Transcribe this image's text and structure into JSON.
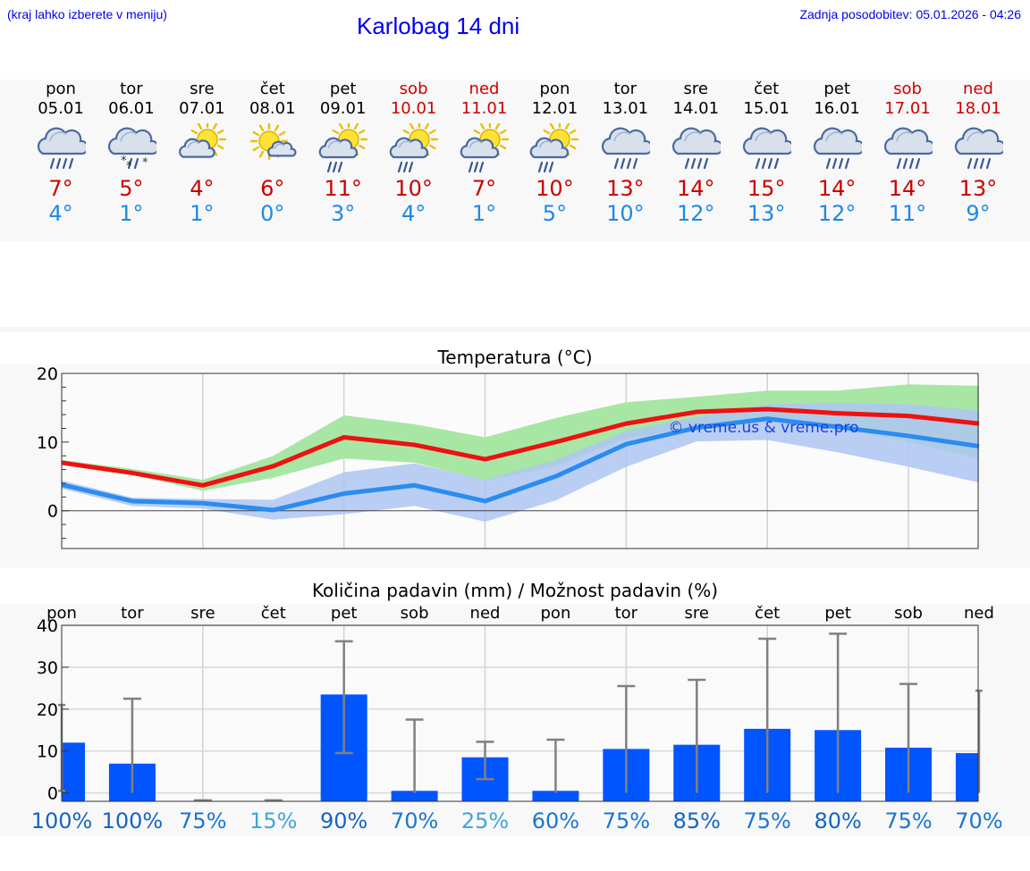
{
  "header": {
    "hint": "(kraj lahko izberete v meniju)",
    "title": "Karlobag 14 dni",
    "updated": "Zadnja posodobitev: 05.01.2026 - 04:26"
  },
  "days": [
    {
      "name": "pon",
      "date": "05.01",
      "icon": "cloud-rain-icon",
      "tmax": "7°",
      "tmin": "4°",
      "weekend": false
    },
    {
      "name": "tor",
      "date": "06.01",
      "icon": "cloud-rain-snow-icon",
      "tmax": "5°",
      "tmin": "1°",
      "weekend": false
    },
    {
      "name": "sre",
      "date": "07.01",
      "icon": "sun-cloud-icon",
      "tmax": "4°",
      "tmin": "1°",
      "weekend": false
    },
    {
      "name": "čet",
      "date": "08.01",
      "icon": "sun-small-cloud-icon",
      "tmax": "6°",
      "tmin": "0°",
      "weekend": false
    },
    {
      "name": "pet",
      "date": "09.01",
      "icon": "sun-cloud-rain-icon",
      "tmax": "11°",
      "tmin": "3°",
      "weekend": false
    },
    {
      "name": "sob",
      "date": "10.01",
      "icon": "sun-cloud-rain-icon",
      "tmax": "10°",
      "tmin": "4°",
      "weekend": true
    },
    {
      "name": "ned",
      "date": "11.01",
      "icon": "sun-cloud-rain-icon",
      "tmax": "7°",
      "tmin": "1°",
      "weekend": true
    },
    {
      "name": "pon",
      "date": "12.01",
      "icon": "sun-cloud-rain-icon",
      "tmax": "10°",
      "tmin": "5°",
      "weekend": false
    },
    {
      "name": "tor",
      "date": "13.01",
      "icon": "cloud-rain-icon",
      "tmax": "13°",
      "tmin": "10°",
      "weekend": false
    },
    {
      "name": "sre",
      "date": "14.01",
      "icon": "cloud-rain-icon",
      "tmax": "14°",
      "tmin": "12°",
      "weekend": false
    },
    {
      "name": "čet",
      "date": "15.01",
      "icon": "cloud-rain-icon",
      "tmax": "15°",
      "tmin": "13°",
      "weekend": false
    },
    {
      "name": "pet",
      "date": "16.01",
      "icon": "cloud-rain-icon",
      "tmax": "14°",
      "tmin": "12°",
      "weekend": false
    },
    {
      "name": "sob",
      "date": "17.01",
      "icon": "cloud-rain-icon",
      "tmax": "14°",
      "tmin": "11°",
      "weekend": true
    },
    {
      "name": "ned",
      "date": "18.01",
      "icon": "cloud-rain-icon",
      "tmax": "13°",
      "tmin": "9°",
      "weekend": true
    }
  ],
  "chart_data": [
    {
      "type": "line",
      "title": "Temperatura (°C)",
      "watermark": "© vreme.us & vreme.pro",
      "ylim": [
        -5.5,
        20
      ],
      "yticks": [
        0,
        10,
        20
      ],
      "x_labels": [
        "pon",
        "tor",
        "sre",
        "čet",
        "pet",
        "sob",
        "ned",
        "pon",
        "tor",
        "sre",
        "čet",
        "pet",
        "sob",
        "ned"
      ],
      "colors": {
        "max": "#ee1111",
        "min": "#2a8cf0",
        "max_band": "#a8e6a4",
        "min_band": "#aec6f2",
        "overlap": "#7cc0a8"
      },
      "series": [
        {
          "name": "max",
          "values": [
            7,
            5.5,
            3.7,
            6.5,
            10.7,
            9.6,
            7.5,
            10,
            12.7,
            14.4,
            14.8,
            14.2,
            13.8,
            12.7
          ]
        },
        {
          "name": "min",
          "values": [
            3.8,
            1.4,
            1.1,
            0.1,
            2.5,
            3.7,
            1.4,
            5,
            9.7,
            12.1,
            13.4,
            12.2,
            10.9,
            9.4
          ]
        }
      ],
      "bands": [
        {
          "name": "max_spread",
          "low": [
            6.8,
            5.2,
            2.9,
            4.8,
            7.6,
            7,
            4.4,
            6.5,
            10.5,
            12.2,
            13.5,
            12,
            10,
            7.6
          ],
          "high": [
            7.4,
            6.1,
            4.5,
            8,
            13.9,
            12.6,
            10.7,
            13.5,
            15.8,
            16.6,
            17.5,
            17.5,
            18.4,
            18.2
          ]
        },
        {
          "name": "min_spread",
          "low": [
            3.2,
            0.7,
            0.3,
            -1.3,
            -0.5,
            0.7,
            -1.6,
            1.5,
            6.4,
            10.1,
            10.3,
            8.5,
            6.4,
            4.1
          ],
          "high": [
            4.4,
            1.9,
            1.7,
            1.6,
            5.6,
            6.9,
            4.5,
            7.4,
            11.6,
            13.7,
            15.5,
            15.7,
            15.5,
            14.6
          ]
        }
      ]
    },
    {
      "type": "bar",
      "title": "Količina padavin (mm) / Možnost padavin (%)",
      "ylim": [
        -2,
        40
      ],
      "yticks": [
        0,
        10,
        20,
        30,
        40
      ],
      "categories": [
        "pon",
        "tor",
        "sre",
        "čet",
        "pet",
        "sob",
        "ned",
        "pon",
        "tor",
        "sre",
        "čet",
        "pet",
        "sob",
        "ned"
      ],
      "color": "#0055ff",
      "values": [
        12,
        7,
        0,
        0,
        23.5,
        0.5,
        8.5,
        0.5,
        10.5,
        11.5,
        15.3,
        15,
        10.8,
        9.5
      ],
      "error_low": [
        0.5,
        0,
        0,
        0,
        9.5,
        0,
        3.3,
        0,
        0,
        0,
        0,
        0,
        0,
        0
      ],
      "error_high": [
        21,
        22.5,
        0,
        0,
        36.2,
        17.5,
        12.2,
        12.7,
        25.5,
        27,
        36.8,
        38,
        26,
        24.4
      ],
      "probability": [
        "100%",
        "100%",
        "75%",
        "15%",
        "90%",
        "70%",
        "25%",
        "60%",
        "75%",
        "85%",
        "75%",
        "80%",
        "75%",
        "70%"
      ],
      "prob_colors": [
        "#1565c0",
        "#1565c0",
        "#1976d2",
        "#42a5d8",
        "#1565c0",
        "#1976d2",
        "#42a5d8",
        "#1976d2",
        "#1976d2",
        "#1565c0",
        "#1976d2",
        "#1565c0",
        "#1976d2",
        "#1976d2"
      ]
    }
  ]
}
